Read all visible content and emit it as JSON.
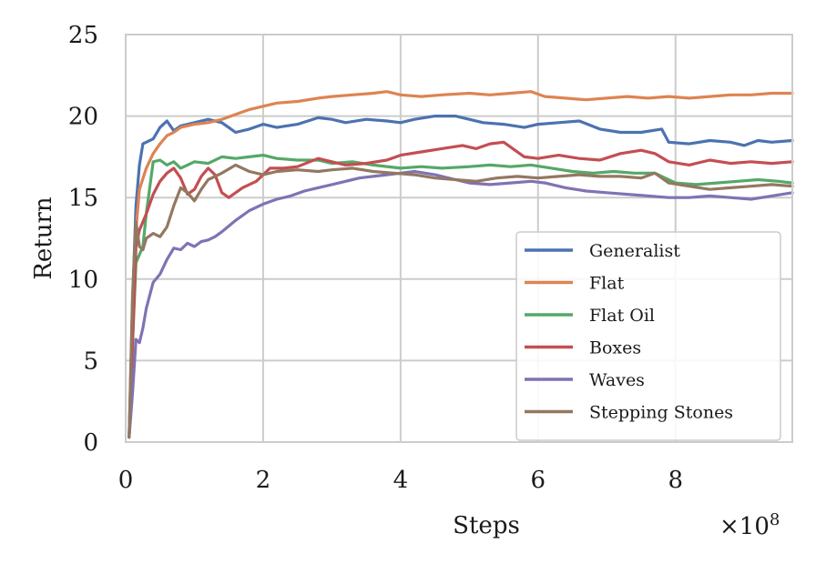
{
  "chart_data": {
    "type": "line",
    "xlabel": "Steps",
    "ylabel": "Return",
    "x_multiplier_label": "×10",
    "x_multiplier_exponent": "8",
    "xlim": [
      0,
      9.7
    ],
    "ylim": [
      0,
      25
    ],
    "xticks": [
      0,
      2,
      4,
      6,
      8
    ],
    "xtick_labels": [
      "0",
      "2",
      "4",
      "6",
      "8"
    ],
    "yticks": [
      0,
      5,
      10,
      15,
      20,
      25
    ],
    "ytick_labels": [
      "0",
      "5",
      "10",
      "15",
      "20",
      "25"
    ],
    "grid": true,
    "legend_position": "lower-right",
    "series": [
      {
        "name": "Generalist",
        "color": "#4c72b0",
        "x": [
          0.05,
          0.1,
          0.15,
          0.2,
          0.25,
          0.3,
          0.4,
          0.5,
          0.6,
          0.7,
          0.8,
          1.0,
          1.2,
          1.4,
          1.6,
          1.8,
          2.0,
          2.2,
          2.5,
          2.8,
          3.0,
          3.2,
          3.5,
          3.8,
          4.0,
          4.2,
          4.5,
          4.8,
          5.0,
          5.2,
          5.5,
          5.8,
          6.0,
          6.3,
          6.6,
          6.9,
          7.2,
          7.5,
          7.8,
          7.9,
          8.2,
          8.5,
          8.8,
          9.0,
          9.2,
          9.4,
          9.7
        ],
        "y": [
          0.3,
          8.5,
          14.5,
          17.0,
          18.3,
          18.4,
          18.6,
          19.3,
          19.7,
          19.1,
          19.4,
          19.6,
          19.8,
          19.6,
          19.0,
          19.2,
          19.5,
          19.3,
          19.5,
          19.9,
          19.8,
          19.6,
          19.8,
          19.7,
          19.6,
          19.8,
          20.0,
          20.0,
          19.8,
          19.6,
          19.5,
          19.3,
          19.5,
          19.6,
          19.7,
          19.2,
          19.0,
          19.0,
          19.2,
          18.4,
          18.3,
          18.5,
          18.4,
          18.2,
          18.5,
          18.4,
          18.5
        ]
      },
      {
        "name": "Flat",
        "color": "#dd8452",
        "x": [
          0.05,
          0.1,
          0.15,
          0.2,
          0.3,
          0.4,
          0.5,
          0.6,
          0.7,
          0.8,
          1.0,
          1.2,
          1.4,
          1.6,
          1.8,
          2.0,
          2.2,
          2.5,
          2.8,
          3.0,
          3.3,
          3.6,
          3.8,
          4.0,
          4.3,
          4.6,
          5.0,
          5.3,
          5.6,
          5.9,
          6.1,
          6.4,
          6.7,
          7.0,
          7.3,
          7.6,
          7.9,
          8.2,
          8.5,
          8.8,
          9.1,
          9.4,
          9.7
        ],
        "y": [
          0.3,
          7.5,
          13.0,
          15.5,
          16.8,
          17.7,
          18.3,
          18.8,
          19.0,
          19.3,
          19.5,
          19.6,
          19.8,
          20.1,
          20.4,
          20.6,
          20.8,
          20.9,
          21.1,
          21.2,
          21.3,
          21.4,
          21.5,
          21.3,
          21.2,
          21.3,
          21.4,
          21.3,
          21.4,
          21.5,
          21.2,
          21.1,
          21.0,
          21.1,
          21.2,
          21.1,
          21.2,
          21.1,
          21.2,
          21.3,
          21.3,
          21.4,
          21.4
        ]
      },
      {
        "name": "Flat Oil",
        "color": "#55a868",
        "x": [
          0.05,
          0.1,
          0.15,
          0.2,
          0.25,
          0.3,
          0.4,
          0.5,
          0.6,
          0.7,
          0.8,
          0.9,
          1.0,
          1.2,
          1.4,
          1.6,
          1.8,
          2.0,
          2.2,
          2.5,
          2.8,
          3.0,
          3.3,
          3.6,
          4.0,
          4.3,
          4.6,
          5.0,
          5.3,
          5.6,
          5.9,
          6.2,
          6.5,
          6.8,
          7.1,
          7.4,
          7.7,
          7.8,
          8.0,
          8.3,
          8.6,
          8.9,
          9.2,
          9.5,
          9.7
        ],
        "y": [
          0.3,
          6.0,
          11.0,
          11.5,
          12.0,
          14.0,
          17.2,
          17.3,
          17.0,
          17.2,
          16.8,
          17.0,
          17.2,
          17.1,
          17.5,
          17.4,
          17.5,
          17.6,
          17.4,
          17.3,
          17.3,
          17.1,
          17.2,
          17.0,
          16.8,
          16.9,
          16.8,
          16.9,
          17.0,
          16.9,
          17.0,
          16.8,
          16.6,
          16.5,
          16.6,
          16.5,
          16.5,
          16.3,
          15.9,
          15.8,
          15.9,
          16.0,
          16.1,
          16.0,
          15.9
        ]
      },
      {
        "name": "Boxes",
        "color": "#c44e52",
        "x": [
          0.05,
          0.1,
          0.15,
          0.2,
          0.3,
          0.4,
          0.5,
          0.6,
          0.7,
          0.8,
          0.9,
          1.0,
          1.1,
          1.2,
          1.3,
          1.4,
          1.5,
          1.7,
          1.9,
          2.1,
          2.3,
          2.5,
          2.8,
          3.0,
          3.2,
          3.5,
          3.8,
          4.0,
          4.3,
          4.6,
          4.9,
          5.1,
          5.3,
          5.5,
          5.8,
          6.0,
          6.3,
          6.6,
          6.9,
          7.2,
          7.5,
          7.7,
          7.9,
          8.2,
          8.5,
          8.8,
          9.1,
          9.4,
          9.7
        ],
        "y": [
          0.3,
          6.0,
          12.0,
          13.0,
          14.0,
          15.2,
          16.0,
          16.5,
          16.8,
          16.2,
          15.2,
          15.5,
          16.3,
          16.8,
          16.4,
          15.3,
          15.0,
          15.6,
          16.0,
          16.8,
          16.8,
          16.9,
          17.4,
          17.2,
          17.0,
          17.1,
          17.3,
          17.6,
          17.8,
          18.0,
          18.2,
          18.0,
          18.3,
          18.4,
          17.5,
          17.4,
          17.6,
          17.4,
          17.3,
          17.7,
          17.9,
          17.7,
          17.2,
          17.0,
          17.3,
          17.1,
          17.2,
          17.1,
          17.2
        ]
      },
      {
        "name": "Waves",
        "color": "#8172b3",
        "x": [
          0.05,
          0.1,
          0.15,
          0.2,
          0.25,
          0.3,
          0.35,
          0.4,
          0.5,
          0.6,
          0.7,
          0.8,
          0.9,
          1.0,
          1.1,
          1.2,
          1.3,
          1.4,
          1.6,
          1.8,
          2.0,
          2.2,
          2.4,
          2.6,
          2.8,
          3.0,
          3.2,
          3.4,
          3.6,
          3.8,
          4.0,
          4.2,
          4.5,
          4.8,
          5.0,
          5.3,
          5.6,
          5.9,
          6.1,
          6.4,
          6.7,
          7.0,
          7.3,
          7.6,
          7.9,
          8.2,
          8.5,
          8.8,
          9.1,
          9.4,
          9.7
        ],
        "y": [
          0.3,
          3.0,
          6.3,
          6.1,
          7.0,
          8.2,
          9.0,
          9.8,
          10.3,
          11.2,
          11.9,
          11.8,
          12.2,
          12.0,
          12.3,
          12.4,
          12.6,
          12.9,
          13.6,
          14.2,
          14.6,
          14.9,
          15.1,
          15.4,
          15.6,
          15.8,
          16.0,
          16.2,
          16.3,
          16.4,
          16.5,
          16.6,
          16.4,
          16.1,
          15.9,
          15.8,
          15.9,
          16.0,
          15.9,
          15.6,
          15.4,
          15.3,
          15.2,
          15.1,
          15.0,
          15.0,
          15.1,
          15.0,
          14.9,
          15.1,
          15.3
        ]
      },
      {
        "name": "Stepping Stones",
        "color": "#937860",
        "x": [
          0.05,
          0.1,
          0.15,
          0.2,
          0.25,
          0.3,
          0.4,
          0.5,
          0.6,
          0.7,
          0.8,
          0.9,
          1.0,
          1.1,
          1.2,
          1.4,
          1.6,
          1.8,
          2.0,
          2.2,
          2.5,
          2.8,
          3.0,
          3.3,
          3.6,
          3.9,
          4.2,
          4.5,
          4.8,
          5.1,
          5.4,
          5.7,
          6.0,
          6.3,
          6.6,
          6.9,
          7.2,
          7.5,
          7.7,
          7.9,
          8.2,
          8.5,
          8.8,
          9.1,
          9.4,
          9.7
        ],
        "y": [
          0.3,
          9.0,
          13.5,
          12.0,
          11.8,
          12.5,
          12.8,
          12.6,
          13.2,
          14.5,
          15.6,
          15.3,
          14.8,
          15.5,
          16.1,
          16.5,
          17.0,
          16.6,
          16.4,
          16.6,
          16.7,
          16.6,
          16.7,
          16.8,
          16.6,
          16.5,
          16.4,
          16.2,
          16.1,
          16.0,
          16.2,
          16.3,
          16.2,
          16.3,
          16.4,
          16.3,
          16.3,
          16.2,
          16.5,
          15.9,
          15.7,
          15.5,
          15.6,
          15.7,
          15.8,
          15.7
        ]
      }
    ]
  }
}
